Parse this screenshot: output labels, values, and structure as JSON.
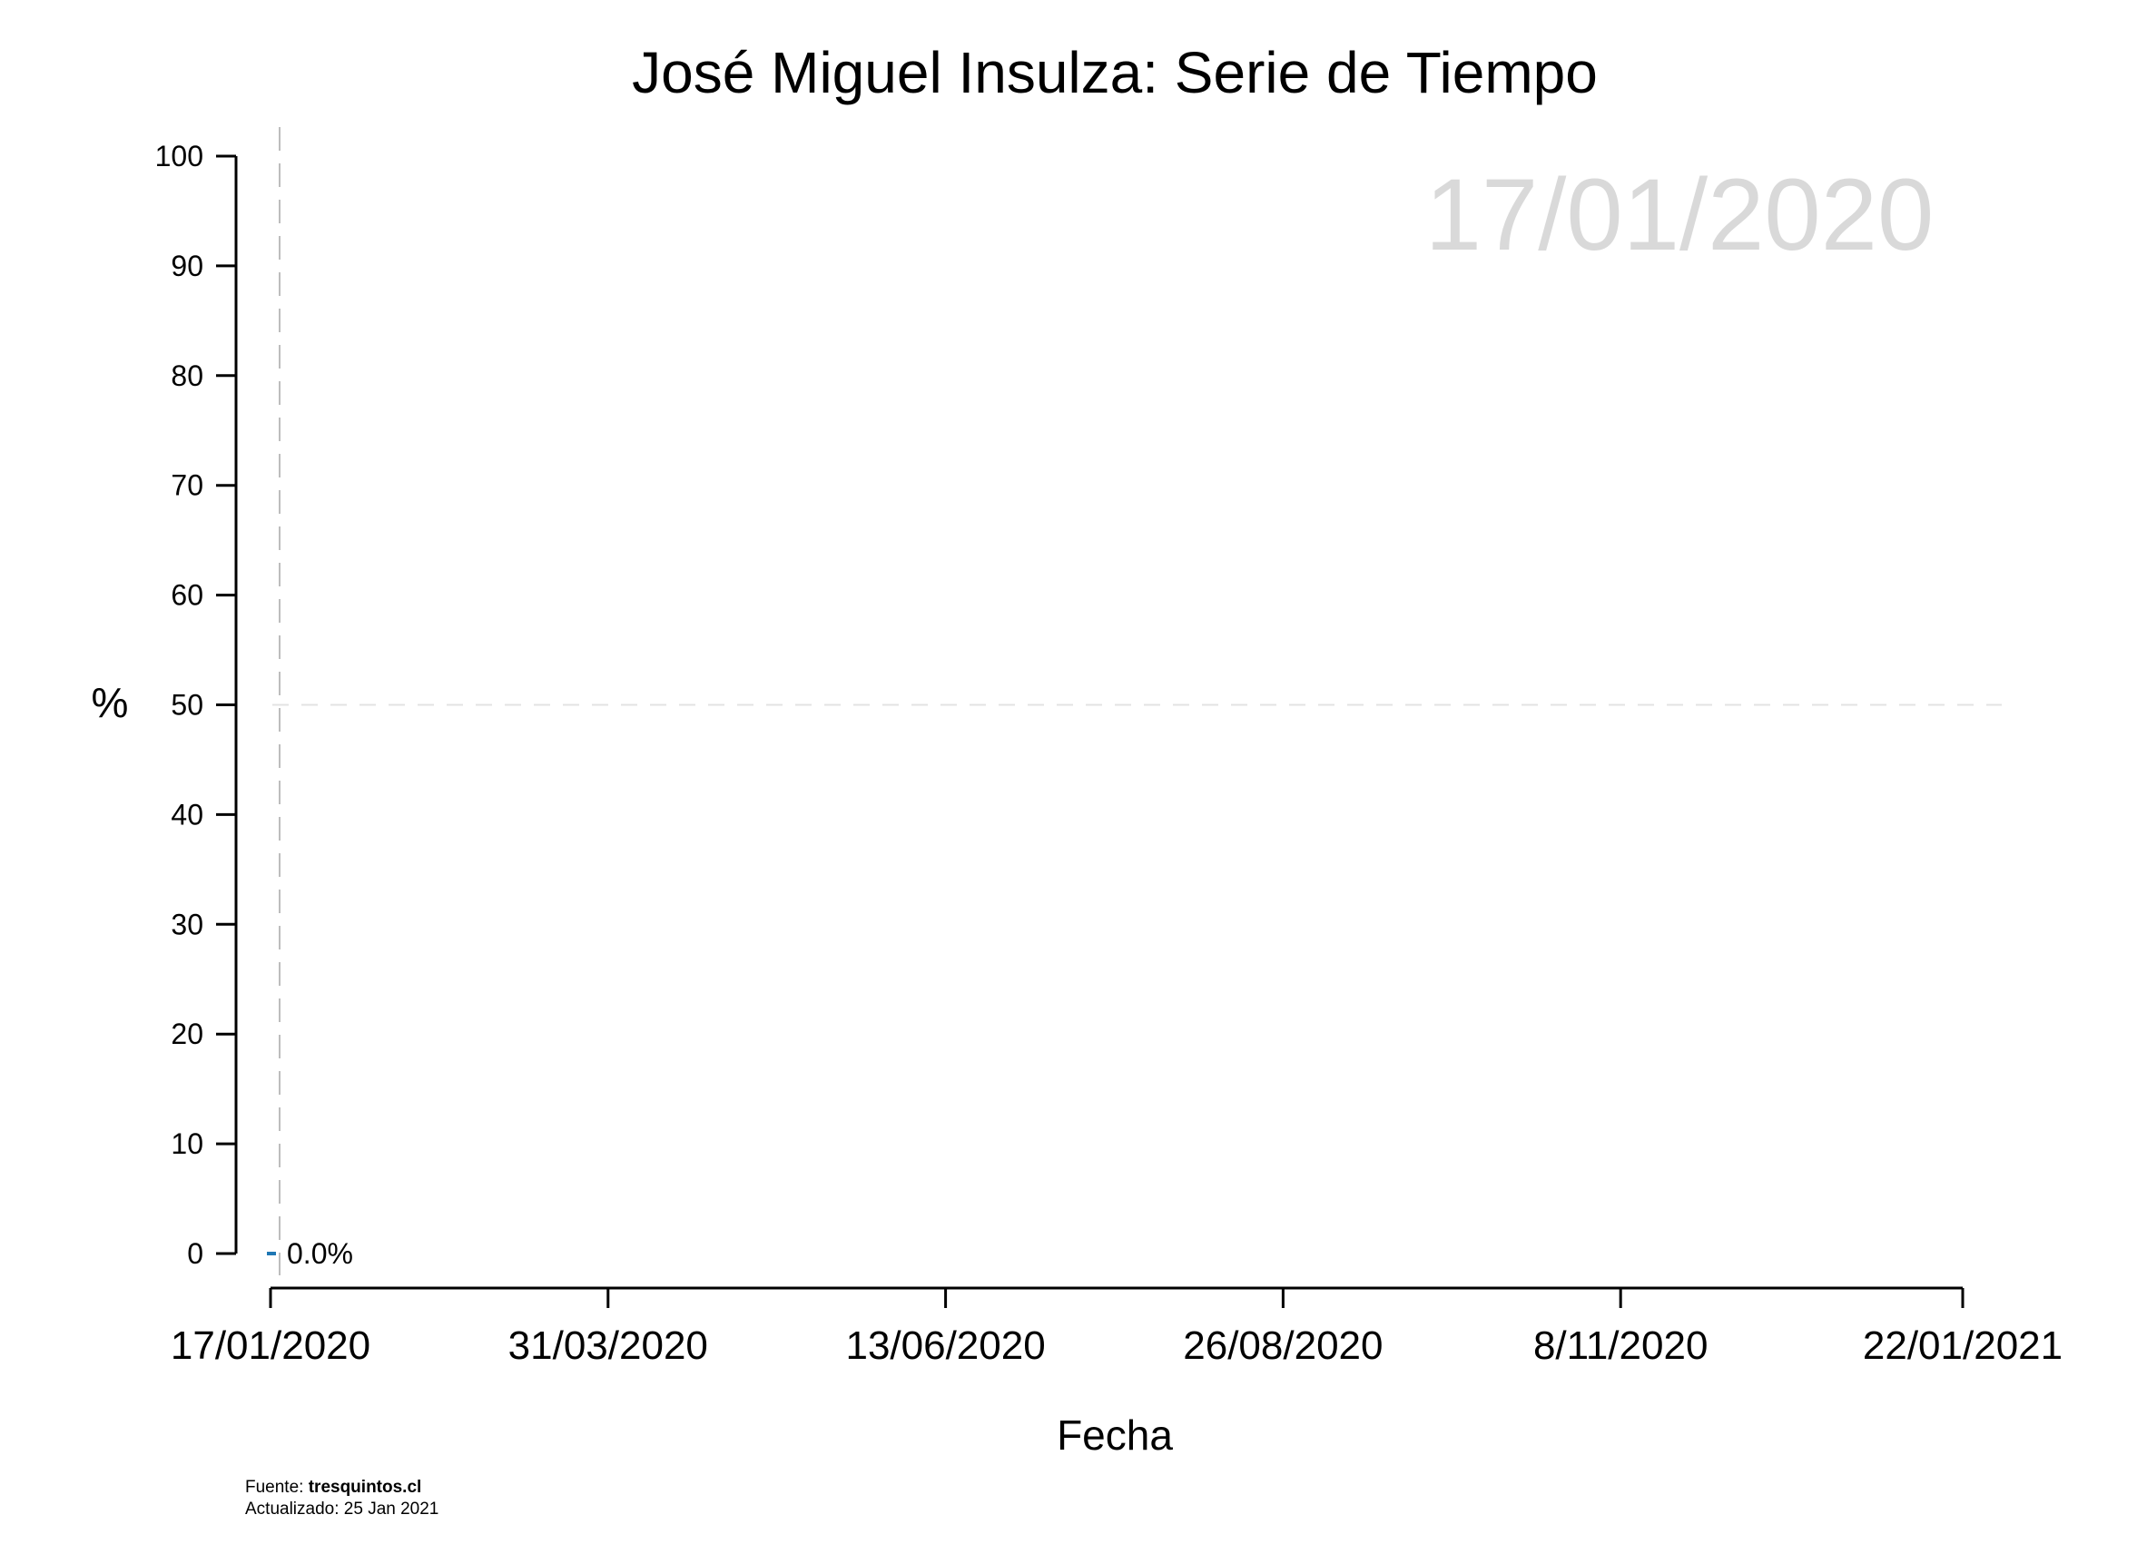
{
  "chart_data": {
    "type": "line",
    "title": "José Miguel Insulza: Serie de Tiempo",
    "xlabel": "Fecha",
    "ylabel": "%",
    "date_watermark": "17/01/2020",
    "x_ticks": [
      "17/01/2020",
      "31/03/2020",
      "13/06/2020",
      "26/08/2020",
      "8/11/2020",
      "22/01/2021"
    ],
    "x_range": [
      "17/01/2020",
      "22/01/2021"
    ],
    "y_ticks": [
      0,
      10,
      20,
      30,
      40,
      50,
      60,
      70,
      80,
      90,
      100
    ],
    "ylim": [
      0,
      100
    ],
    "reference_line_y": 50,
    "current_date_line": "17/01/2020",
    "series": [
      {
        "color": "#1f77b4",
        "points": [
          {
            "x": "17/01/2020",
            "y": 0.0
          }
        ],
        "label": "0.0%"
      }
    ],
    "grid": false
  },
  "footer": {
    "source_label": "Fuente: ",
    "source_value": "tresquintos.cl",
    "updated_label": "Actualizado: 25 Jan 2021"
  }
}
